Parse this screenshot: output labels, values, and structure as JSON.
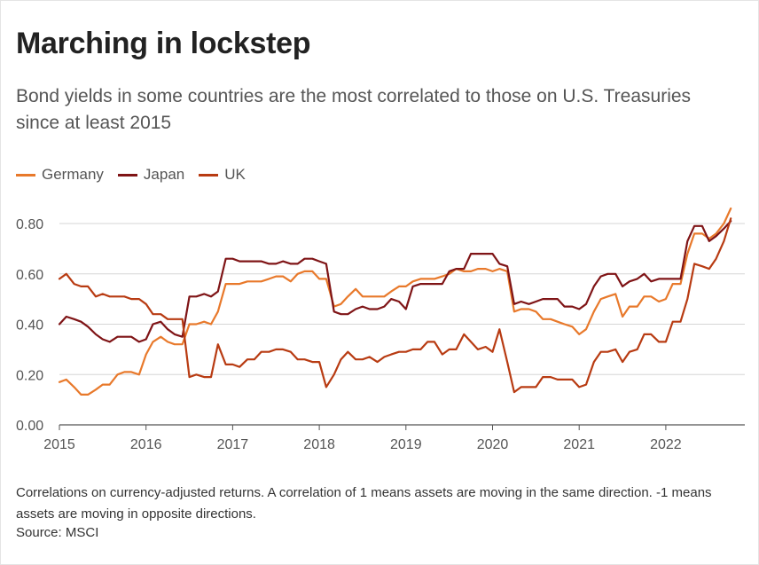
{
  "title": "Marching in lockstep",
  "subtitle": "Bond yields in some countries are the most correlated to those on U.S. Treasuries since at least 2015",
  "footnote": "Correlations on currency-adjusted returns. A correlation of 1 means assets are moving in the same direction. -1 means assets are moving in opposite directions.",
  "source": "Source: MSCI",
  "chart_data": {
    "type": "line",
    "title": "Marching in lockstep",
    "xlabel": "",
    "ylabel": "",
    "xlim": [
      2015,
      2022.9
    ],
    "ylim": [
      0,
      0.8
    ],
    "x_ticks": [
      "2015",
      "2016",
      "2017",
      "2018",
      "2019",
      "2020",
      "2021",
      "2022"
    ],
    "y_ticks": [
      "0.00",
      "0.20",
      "0.40",
      "0.60",
      "0.80"
    ],
    "grid": true,
    "legend_position": "top-left",
    "series": [
      {
        "name": "Germany",
        "color": "#e8792b",
        "points": [
          [
            2015.0,
            0.17
          ],
          [
            2015.08,
            0.18
          ],
          [
            2015.17,
            0.15
          ],
          [
            2015.25,
            0.12
          ],
          [
            2015.33,
            0.12
          ],
          [
            2015.42,
            0.14
          ],
          [
            2015.5,
            0.16
          ],
          [
            2015.58,
            0.16
          ],
          [
            2015.67,
            0.2
          ],
          [
            2015.75,
            0.21
          ],
          [
            2015.83,
            0.21
          ],
          [
            2015.92,
            0.2
          ],
          [
            2016.0,
            0.28
          ],
          [
            2016.08,
            0.33
          ],
          [
            2016.17,
            0.35
          ],
          [
            2016.25,
            0.33
          ],
          [
            2016.33,
            0.32
          ],
          [
            2016.42,
            0.32
          ],
          [
            2016.5,
            0.4
          ],
          [
            2016.58,
            0.4
          ],
          [
            2016.67,
            0.41
          ],
          [
            2016.75,
            0.4
          ],
          [
            2016.83,
            0.45
          ],
          [
            2016.92,
            0.56
          ],
          [
            2017.0,
            0.56
          ],
          [
            2017.08,
            0.56
          ],
          [
            2017.17,
            0.57
          ],
          [
            2017.25,
            0.57
          ],
          [
            2017.33,
            0.57
          ],
          [
            2017.42,
            0.58
          ],
          [
            2017.5,
            0.59
          ],
          [
            2017.58,
            0.59
          ],
          [
            2017.67,
            0.57
          ],
          [
            2017.75,
            0.6
          ],
          [
            2017.83,
            0.61
          ],
          [
            2017.92,
            0.61
          ],
          [
            2018.0,
            0.58
          ],
          [
            2018.08,
            0.58
          ],
          [
            2018.17,
            0.47
          ],
          [
            2018.25,
            0.48
          ],
          [
            2018.33,
            0.51
          ],
          [
            2018.42,
            0.54
          ],
          [
            2018.5,
            0.51
          ],
          [
            2018.58,
            0.51
          ],
          [
            2018.67,
            0.51
          ],
          [
            2018.75,
            0.51
          ],
          [
            2018.83,
            0.53
          ],
          [
            2018.92,
            0.55
          ],
          [
            2019.0,
            0.55
          ],
          [
            2019.08,
            0.57
          ],
          [
            2019.17,
            0.58
          ],
          [
            2019.25,
            0.58
          ],
          [
            2019.33,
            0.58
          ],
          [
            2019.42,
            0.59
          ],
          [
            2019.5,
            0.6
          ],
          [
            2019.58,
            0.62
          ],
          [
            2019.67,
            0.61
          ],
          [
            2019.75,
            0.61
          ],
          [
            2019.83,
            0.62
          ],
          [
            2019.92,
            0.62
          ],
          [
            2020.0,
            0.61
          ],
          [
            2020.08,
            0.62
          ],
          [
            2020.17,
            0.61
          ],
          [
            2020.25,
            0.45
          ],
          [
            2020.33,
            0.46
          ],
          [
            2020.42,
            0.46
          ],
          [
            2020.5,
            0.45
          ],
          [
            2020.58,
            0.42
          ],
          [
            2020.67,
            0.42
          ],
          [
            2020.75,
            0.41
          ],
          [
            2020.83,
            0.4
          ],
          [
            2020.92,
            0.39
          ],
          [
            2021.0,
            0.36
          ],
          [
            2021.08,
            0.38
          ],
          [
            2021.17,
            0.45
          ],
          [
            2021.25,
            0.5
          ],
          [
            2021.33,
            0.51
          ],
          [
            2021.42,
            0.52
          ],
          [
            2021.5,
            0.43
          ],
          [
            2021.58,
            0.47
          ],
          [
            2021.67,
            0.47
          ],
          [
            2021.75,
            0.51
          ],
          [
            2021.83,
            0.51
          ],
          [
            2021.92,
            0.49
          ],
          [
            2022.0,
            0.5
          ],
          [
            2022.08,
            0.56
          ],
          [
            2022.17,
            0.56
          ],
          [
            2022.25,
            0.68
          ],
          [
            2022.33,
            0.76
          ],
          [
            2022.42,
            0.76
          ],
          [
            2022.5,
            0.74
          ],
          [
            2022.58,
            0.76
          ],
          [
            2022.67,
            0.8
          ],
          [
            2022.75,
            0.86
          ]
        ]
      },
      {
        "name": "Japan",
        "color": "#7f1416",
        "points": [
          [
            2015.0,
            0.4
          ],
          [
            2015.08,
            0.43
          ],
          [
            2015.17,
            0.42
          ],
          [
            2015.25,
            0.41
          ],
          [
            2015.33,
            0.39
          ],
          [
            2015.42,
            0.36
          ],
          [
            2015.5,
            0.34
          ],
          [
            2015.58,
            0.33
          ],
          [
            2015.67,
            0.35
          ],
          [
            2015.75,
            0.35
          ],
          [
            2015.83,
            0.35
          ],
          [
            2015.92,
            0.33
          ],
          [
            2016.0,
            0.34
          ],
          [
            2016.08,
            0.4
          ],
          [
            2016.17,
            0.41
          ],
          [
            2016.25,
            0.38
          ],
          [
            2016.33,
            0.36
          ],
          [
            2016.42,
            0.35
          ],
          [
            2016.5,
            0.51
          ],
          [
            2016.58,
            0.51
          ],
          [
            2016.67,
            0.52
          ],
          [
            2016.75,
            0.51
          ],
          [
            2016.83,
            0.53
          ],
          [
            2016.92,
            0.66
          ],
          [
            2017.0,
            0.66
          ],
          [
            2017.08,
            0.65
          ],
          [
            2017.17,
            0.65
          ],
          [
            2017.25,
            0.65
          ],
          [
            2017.33,
            0.65
          ],
          [
            2017.42,
            0.64
          ],
          [
            2017.5,
            0.64
          ],
          [
            2017.58,
            0.65
          ],
          [
            2017.67,
            0.64
          ],
          [
            2017.75,
            0.64
          ],
          [
            2017.83,
            0.66
          ],
          [
            2017.92,
            0.66
          ],
          [
            2018.0,
            0.65
          ],
          [
            2018.08,
            0.64
          ],
          [
            2018.17,
            0.45
          ],
          [
            2018.25,
            0.44
          ],
          [
            2018.33,
            0.44
          ],
          [
            2018.42,
            0.46
          ],
          [
            2018.5,
            0.47
          ],
          [
            2018.58,
            0.46
          ],
          [
            2018.67,
            0.46
          ],
          [
            2018.75,
            0.47
          ],
          [
            2018.83,
            0.5
          ],
          [
            2018.92,
            0.49
          ],
          [
            2019.0,
            0.46
          ],
          [
            2019.08,
            0.55
          ],
          [
            2019.17,
            0.56
          ],
          [
            2019.25,
            0.56
          ],
          [
            2019.33,
            0.56
          ],
          [
            2019.42,
            0.56
          ],
          [
            2019.5,
            0.61
          ],
          [
            2019.58,
            0.62
          ],
          [
            2019.67,
            0.62
          ],
          [
            2019.75,
            0.68
          ],
          [
            2019.83,
            0.68
          ],
          [
            2019.92,
            0.68
          ],
          [
            2020.0,
            0.68
          ],
          [
            2020.08,
            0.64
          ],
          [
            2020.17,
            0.63
          ],
          [
            2020.25,
            0.48
          ],
          [
            2020.33,
            0.49
          ],
          [
            2020.42,
            0.48
          ],
          [
            2020.5,
            0.49
          ],
          [
            2020.58,
            0.5
          ],
          [
            2020.67,
            0.5
          ],
          [
            2020.75,
            0.5
          ],
          [
            2020.83,
            0.47
          ],
          [
            2020.92,
            0.47
          ],
          [
            2021.0,
            0.46
          ],
          [
            2021.08,
            0.48
          ],
          [
            2021.17,
            0.55
          ],
          [
            2021.25,
            0.59
          ],
          [
            2021.33,
            0.6
          ],
          [
            2021.42,
            0.6
          ],
          [
            2021.5,
            0.55
          ],
          [
            2021.58,
            0.57
          ],
          [
            2021.67,
            0.58
          ],
          [
            2021.75,
            0.6
          ],
          [
            2021.83,
            0.57
          ],
          [
            2021.92,
            0.58
          ],
          [
            2022.0,
            0.58
          ],
          [
            2022.08,
            0.58
          ],
          [
            2022.17,
            0.58
          ],
          [
            2022.25,
            0.73
          ],
          [
            2022.33,
            0.79
          ],
          [
            2022.42,
            0.79
          ],
          [
            2022.5,
            0.73
          ],
          [
            2022.58,
            0.75
          ],
          [
            2022.67,
            0.78
          ],
          [
            2022.75,
            0.81
          ]
        ]
      },
      {
        "name": "UK",
        "color": "#b83b12",
        "points": [
          [
            2015.0,
            0.58
          ],
          [
            2015.08,
            0.6
          ],
          [
            2015.17,
            0.56
          ],
          [
            2015.25,
            0.55
          ],
          [
            2015.33,
            0.55
          ],
          [
            2015.42,
            0.51
          ],
          [
            2015.5,
            0.52
          ],
          [
            2015.58,
            0.51
          ],
          [
            2015.67,
            0.51
          ],
          [
            2015.75,
            0.51
          ],
          [
            2015.83,
            0.5
          ],
          [
            2015.92,
            0.5
          ],
          [
            2016.0,
            0.48
          ],
          [
            2016.08,
            0.44
          ],
          [
            2016.17,
            0.44
          ],
          [
            2016.25,
            0.42
          ],
          [
            2016.33,
            0.42
          ],
          [
            2016.42,
            0.42
          ],
          [
            2016.5,
            0.19
          ],
          [
            2016.58,
            0.2
          ],
          [
            2016.67,
            0.19
          ],
          [
            2016.75,
            0.19
          ],
          [
            2016.83,
            0.32
          ],
          [
            2016.92,
            0.24
          ],
          [
            2017.0,
            0.24
          ],
          [
            2017.08,
            0.23
          ],
          [
            2017.17,
            0.26
          ],
          [
            2017.25,
            0.26
          ],
          [
            2017.33,
            0.29
          ],
          [
            2017.42,
            0.29
          ],
          [
            2017.5,
            0.3
          ],
          [
            2017.58,
            0.3
          ],
          [
            2017.67,
            0.29
          ],
          [
            2017.75,
            0.26
          ],
          [
            2017.83,
            0.26
          ],
          [
            2017.92,
            0.25
          ],
          [
            2018.0,
            0.25
          ],
          [
            2018.08,
            0.15
          ],
          [
            2018.17,
            0.2
          ],
          [
            2018.25,
            0.26
          ],
          [
            2018.33,
            0.29
          ],
          [
            2018.42,
            0.26
          ],
          [
            2018.5,
            0.26
          ],
          [
            2018.58,
            0.27
          ],
          [
            2018.67,
            0.25
          ],
          [
            2018.75,
            0.27
          ],
          [
            2018.83,
            0.28
          ],
          [
            2018.92,
            0.29
          ],
          [
            2019.0,
            0.29
          ],
          [
            2019.08,
            0.3
          ],
          [
            2019.17,
            0.3
          ],
          [
            2019.25,
            0.33
          ],
          [
            2019.33,
            0.33
          ],
          [
            2019.42,
            0.28
          ],
          [
            2019.5,
            0.3
          ],
          [
            2019.58,
            0.3
          ],
          [
            2019.67,
            0.36
          ],
          [
            2019.75,
            0.33
          ],
          [
            2019.83,
            0.3
          ],
          [
            2019.92,
            0.31
          ],
          [
            2020.0,
            0.29
          ],
          [
            2020.08,
            0.38
          ],
          [
            2020.17,
            0.25
          ],
          [
            2020.25,
            0.13
          ],
          [
            2020.33,
            0.15
          ],
          [
            2020.42,
            0.15
          ],
          [
            2020.5,
            0.15
          ],
          [
            2020.58,
            0.19
          ],
          [
            2020.67,
            0.19
          ],
          [
            2020.75,
            0.18
          ],
          [
            2020.83,
            0.18
          ],
          [
            2020.92,
            0.18
          ],
          [
            2021.0,
            0.15
          ],
          [
            2021.08,
            0.16
          ],
          [
            2021.17,
            0.25
          ],
          [
            2021.25,
            0.29
          ],
          [
            2021.33,
            0.29
          ],
          [
            2021.42,
            0.3
          ],
          [
            2021.5,
            0.25
          ],
          [
            2021.58,
            0.29
          ],
          [
            2021.67,
            0.3
          ],
          [
            2021.75,
            0.36
          ],
          [
            2021.83,
            0.36
          ],
          [
            2021.92,
            0.33
          ],
          [
            2022.0,
            0.33
          ],
          [
            2022.08,
            0.41
          ],
          [
            2022.17,
            0.41
          ],
          [
            2022.25,
            0.5
          ],
          [
            2022.33,
            0.64
          ],
          [
            2022.42,
            0.63
          ],
          [
            2022.5,
            0.62
          ],
          [
            2022.58,
            0.66
          ],
          [
            2022.67,
            0.73
          ],
          [
            2022.75,
            0.82
          ]
        ]
      }
    ]
  }
}
